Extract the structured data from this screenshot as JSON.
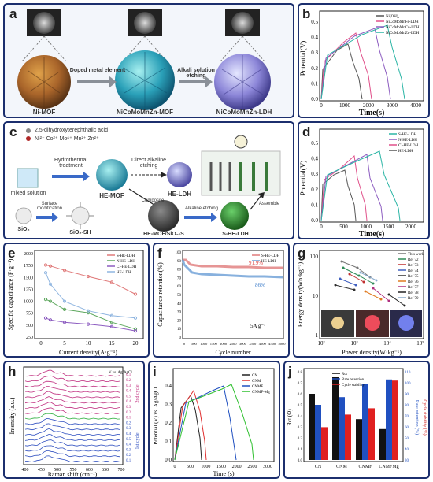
{
  "panels": {
    "a": {
      "label": "a",
      "mof": "Ni-MOF",
      "step1": "Doped metal element",
      "mid": "NiCoMoMnZn-MOF",
      "step2": "Alkali solution etching",
      "ldh": "NiCoMoMnZn-LDH"
    },
    "b": {
      "label": "b",
      "ylabel": "Potential(V)",
      "xlabel": "Time(s)",
      "yticks": [
        "0.0",
        "0.1",
        "0.2",
        "0.3",
        "0.4",
        "0.5"
      ],
      "xticks": [
        "0",
        "1000",
        "2000",
        "3000",
        "4000"
      ],
      "legend": [
        "Ni(OH)₂",
        "NiCoMoMnFe-LDH",
        "NiCoMoMnCu-LDH",
        "NiCoMoMnZn-LDH"
      ],
      "colors": [
        "#555555",
        "#e0508a",
        "#8c5cc0",
        "#2bb5a5"
      ]
    },
    "c": {
      "label": "c",
      "linker": "2,5-dihydroxyterephthalic acid",
      "ions": "Ni²⁺ Co²⁺ Mo⁶⁺ Mn²⁺ Zn²⁺",
      "hydro": "Hydrothermal treatment",
      "direct": "Direct alkaline etching",
      "mixed": "mixed solution",
      "hemof": "HE-MOF",
      "heldh": "HE-LDH",
      "sio2": "SiO₂",
      "surface": "Surface modification",
      "sio2sh": "SiO₂-SH",
      "composite": "Composite",
      "hemofsio2": "HE-MOF/SiO₂-S",
      "alk": "Alkaline etching",
      "sheldh": "S-HE-LDH",
      "assemble": "Assemble"
    },
    "d": {
      "label": "d",
      "ylabel": "Potential(V)",
      "xlabel": "Time(s)",
      "yticks": [
        "0.0",
        "0.1",
        "0.2",
        "0.3",
        "0.4",
        "0.5"
      ],
      "xticks": [
        "0",
        "500",
        "1000",
        "1500",
        "2000"
      ],
      "legend": [
        "S-HE-LDH",
        "N-HE-LDH",
        "CI-HE-LDH",
        "HE-LDH"
      ],
      "colors": [
        "#2bb5a5",
        "#8c5cc0",
        "#e0508a",
        "#555555"
      ]
    },
    "e": {
      "label": "e",
      "ylabel": "Specific capacitance (F·g⁻¹)",
      "xlabel": "Current density(A·g⁻¹)",
      "yticks": [
        "250",
        "500",
        "750",
        "1000",
        "1250",
        "1500",
        "1750",
        "2000"
      ],
      "xticks": [
        "0",
        "5",
        "10",
        "15",
        "20"
      ],
      "legend": [
        "S-HE-LDH",
        "N-HE-LDH",
        "CI-HE-LDH",
        "HE-LDH"
      ],
      "colors": [
        "#e07a7a",
        "#5fa85f",
        "#8c5cc0",
        "#8fb5e0"
      ]
    },
    "f": {
      "label": "f",
      "ylabel": "Capacitance retention(%)",
      "xlabel": "Cycle number",
      "yticks": [
        "0",
        "10",
        "20",
        "30",
        "40",
        "50",
        "60",
        "70",
        "80",
        "90",
        "100"
      ],
      "xticks": [
        "0",
        "500",
        "1000",
        "1500",
        "2000",
        "2500",
        "3000",
        "3500",
        "4000",
        "4500",
        "5000"
      ],
      "legend": [
        "S-HE-LDH",
        "HE-LDH"
      ],
      "ann1": "91.9%",
      "ann2": "86%",
      "note": "5A g⁻¹"
    },
    "g": {
      "label": "g",
      "ylabel": "Energy density(Wh·kg⁻¹)",
      "xlabel": "Power density(W·kg⁻¹)",
      "yticks": [
        "1",
        "10",
        "100"
      ],
      "xticks": [
        "10²",
        "10³",
        "10⁴",
        "10⁵"
      ],
      "legend": [
        "This work",
        "Ref 72",
        "Ref 73",
        "Ref 74",
        "Ref 75",
        "Ref 76",
        "Ref 77",
        "Ref 78",
        "Ref 79"
      ]
    },
    "h": {
      "label": "h",
      "ylabel": "Intensity (a.u.)",
      "xlabel": "Raman shift (cm⁻¹)",
      "xticks": [
        "400",
        "450",
        "500",
        "550",
        "600",
        "650",
        "700"
      ],
      "header": "V vs. Ag/AgCl",
      "cyc1": "1st cycle",
      "cyc2": "2nd cycle",
      "vals": [
        "0.1",
        "0.2",
        "0.3",
        "0.4",
        "0.5",
        "0.4",
        "0.3",
        "0.2",
        "0.1",
        "0.2",
        "0.3",
        "0.4",
        "0.5",
        "0.4",
        "0.3",
        "0.2",
        "0.1"
      ]
    },
    "i": {
      "label": "i",
      "ylabel": "Potential (V) vs. Ag/AgCl",
      "xlabel": "Time (s)",
      "yticks": [
        "0.0",
        "0.1",
        "0.2",
        "0.3",
        "0.4"
      ],
      "xticks": [
        "0",
        "500",
        "1000",
        "1500",
        "2000",
        "2500",
        "3000"
      ],
      "legend": [
        "CN",
        "CNM",
        "CNMF",
        "CNMF-Mg"
      ],
      "colors": [
        "#222222",
        "#e03030",
        "#2050c0",
        "#30c030"
      ]
    },
    "j": {
      "label": "j",
      "ylabel": "Rct (Ω)",
      "y2": "Rate retention (%)",
      "y3": "Cycle stability (%)",
      "cats": [
        "CN",
        "CNM",
        "CNMF",
        "CNMFMg"
      ],
      "legend": [
        "Rct",
        "Rate retention",
        "Cycle stability"
      ],
      "yticks": [
        "0.0",
        "0.1",
        "0.2",
        "0.3",
        "0.4",
        "0.5",
        "0.6",
        "0.7",
        "0.8"
      ],
      "y2ticks": [
        "30",
        "40",
        "50",
        "60",
        "70",
        "80",
        "90",
        "100",
        "110"
      ],
      "y3ticks": [
        "50",
        "60",
        "70",
        "80",
        "90",
        "100",
        "110",
        "120"
      ]
    }
  }
}
